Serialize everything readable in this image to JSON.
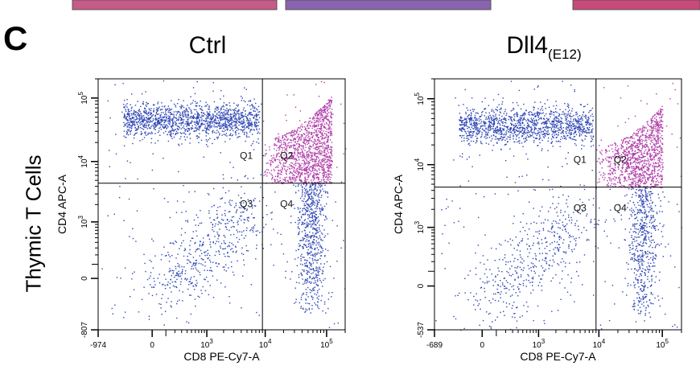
{
  "panel_letter": "C",
  "row_label": "Thymic T Cells",
  "colors": {
    "cd4_cd8_single": "#2e46b4",
    "double_positive": "#b03ca8",
    "strip": "#c84a7a"
  },
  "chart_data": [
    {
      "type": "scatter",
      "title": "Ctrl",
      "title_sub": "",
      "xlabel": "CD8 PE-Cy7-A",
      "ylabel": "CD4 APC-A",
      "xscale": "biexponential",
      "yscale": "biexponential",
      "xlim": [
        -974,
        200000
      ],
      "ylim": [
        -807,
        200000
      ],
      "x_tick_labels": [
        "-974",
        "0",
        "10^3",
        "10^4",
        "10^5"
      ],
      "y_tick_labels": [
        "-807",
        "0",
        "10^3",
        "10^4",
        "10^5"
      ],
      "x_ticks": [
        -974,
        0,
        1000,
        10000,
        100000
      ],
      "y_ticks": [
        -807,
        0,
        1000,
        10000,
        100000
      ],
      "gate": {
        "x": 9000,
        "y": 4500
      },
      "quadrants": [
        "Q1",
        "Q2",
        "Q3",
        "Q4"
      ],
      "populations": [
        {
          "name": "",
          "quadrant": "Q1",
          "color": "#2e46b4",
          "x_range": [
            -300,
            8000
          ],
          "y_center": 45000,
          "count": 1400
        },
        {
          "name": "",
          "quadrant": "Q2",
          "color": "#b03ca8",
          "x_range": [
            9000,
            120000
          ],
          "y_range": [
            4500,
            110000
          ],
          "count": 1300
        },
        {
          "name": "",
          "quadrant": "Q4",
          "color": "#2e46b4",
          "x_center": 55000,
          "y_range": [
            -400,
            4500
          ],
          "count": 650
        },
        {
          "name": "",
          "quadrant": "Q3",
          "color": "#2e46b4",
          "x_center": 40,
          "y_center": 0,
          "count": 500
        }
      ]
    },
    {
      "type": "scatter",
      "title": "Dll4",
      "title_sub": "(E12)",
      "xlabel": "CD8 PE-Cy7-A",
      "ylabel": "CD4 APC-A",
      "xscale": "biexponential",
      "yscale": "biexponential",
      "xlim": [
        -689,
        200000
      ],
      "ylim": [
        -537,
        200000
      ],
      "x_tick_labels": [
        "-689",
        "0",
        "10^3",
        "10^4",
        "10^5"
      ],
      "y_tick_labels": [
        "-537",
        "0",
        "10^3",
        "10^4",
        "10^5"
      ],
      "x_ticks": [
        -689,
        0,
        1000,
        10000,
        100000
      ],
      "y_ticks": [
        -537,
        0,
        1000,
        10000,
        100000
      ],
      "gate": {
        "x": 9000,
        "y": 4500
      },
      "quadrants": [
        "Q1",
        "Q2",
        "Q3",
        "Q4"
      ],
      "populations": [
        {
          "name": "",
          "quadrant": "Q1",
          "color": "#2e46b4",
          "x_range": [
            -200,
            8000
          ],
          "y_center": 40000,
          "count": 1300
        },
        {
          "name": "",
          "quadrant": "Q2",
          "color": "#b03ca8",
          "x_range": [
            9000,
            100000
          ],
          "y_range": [
            4500,
            80000
          ],
          "count": 1100
        },
        {
          "name": "",
          "quadrant": "Q4",
          "color": "#2e46b4",
          "x_center": 50000,
          "y_range": [
            -300,
            4500
          ],
          "count": 550
        },
        {
          "name": "",
          "quadrant": "Q3",
          "color": "#2e46b4",
          "x_center": 40,
          "y_center": 0,
          "count": 450
        }
      ]
    }
  ]
}
